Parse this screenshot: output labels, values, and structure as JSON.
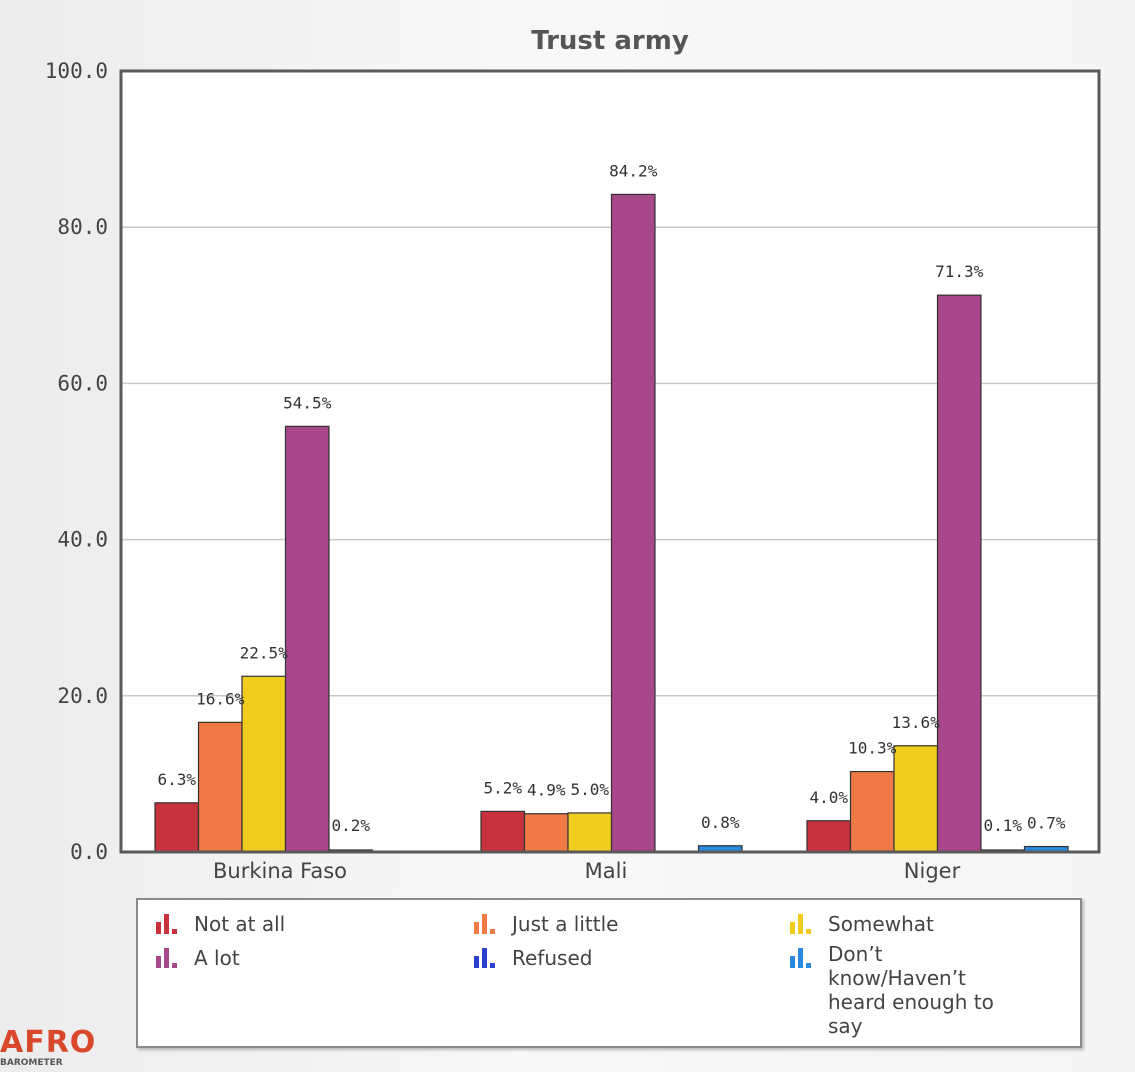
{
  "chart_data": {
    "type": "bar",
    "title": "Trust army",
    "categories": [
      "Burkina Faso",
      "Mali",
      "Niger"
    ],
    "ylim": [
      0,
      100
    ],
    "y_ticks": [
      "0.0",
      "20.0",
      "40.0",
      "60.0",
      "80.0",
      "100.0"
    ],
    "y_tick_values": [
      0,
      20,
      40,
      60,
      80,
      100
    ],
    "grid": true,
    "series": [
      {
        "name": "Not at all",
        "color": "#c8323c",
        "values": [
          6.3,
          5.2,
          4.0
        ],
        "labels": [
          "6.3%",
          "5.2%",
          "4.0%"
        ]
      },
      {
        "name": "Just a little",
        "color": "#ef7a45",
        "values": [
          16.6,
          4.9,
          10.3
        ],
        "labels": [
          "16.6%",
          "4.9%",
          "10.3%"
        ]
      },
      {
        "name": "Somewhat",
        "color": "#f0cc1e",
        "values": [
          22.5,
          5.0,
          13.6
        ],
        "labels": [
          "22.5%",
          "5.0%",
          "13.6%"
        ]
      },
      {
        "name": "A lot",
        "color": "#a8478a",
        "values": [
          54.5,
          84.2,
          71.3
        ],
        "labels": [
          "54.5%",
          "84.2%",
          "71.3%"
        ]
      },
      {
        "name": "Refused",
        "color": "#2b3fd0",
        "values": [
          0.2,
          0,
          0.1
        ],
        "labels": [
          "0.2%",
          "",
          "0.1%"
        ]
      },
      {
        "name": "Don't know/Haven't heard enough to say",
        "color": "#2a8ae0",
        "values": [
          0,
          0.8,
          0.7
        ],
        "labels": [
          "",
          "0.8%",
          "0.7%"
        ]
      }
    ],
    "legend_position": "bottom"
  },
  "legend": {
    "items": [
      {
        "label": "Not at all",
        "color": "#c8323c"
      },
      {
        "label": "Just a little",
        "color": "#ef7a45"
      },
      {
        "label": "Somewhat",
        "color": "#f0cc1e"
      },
      {
        "label": "A lot",
        "color": "#a8478a"
      },
      {
        "label": "Refused",
        "color": "#2b3fd0"
      },
      {
        "label": "Don’t know/Haven’t heard enough to say",
        "color": "#2a8ae0"
      }
    ]
  },
  "logo": {
    "main": "AFRO",
    "sub": "BAROMETER"
  }
}
